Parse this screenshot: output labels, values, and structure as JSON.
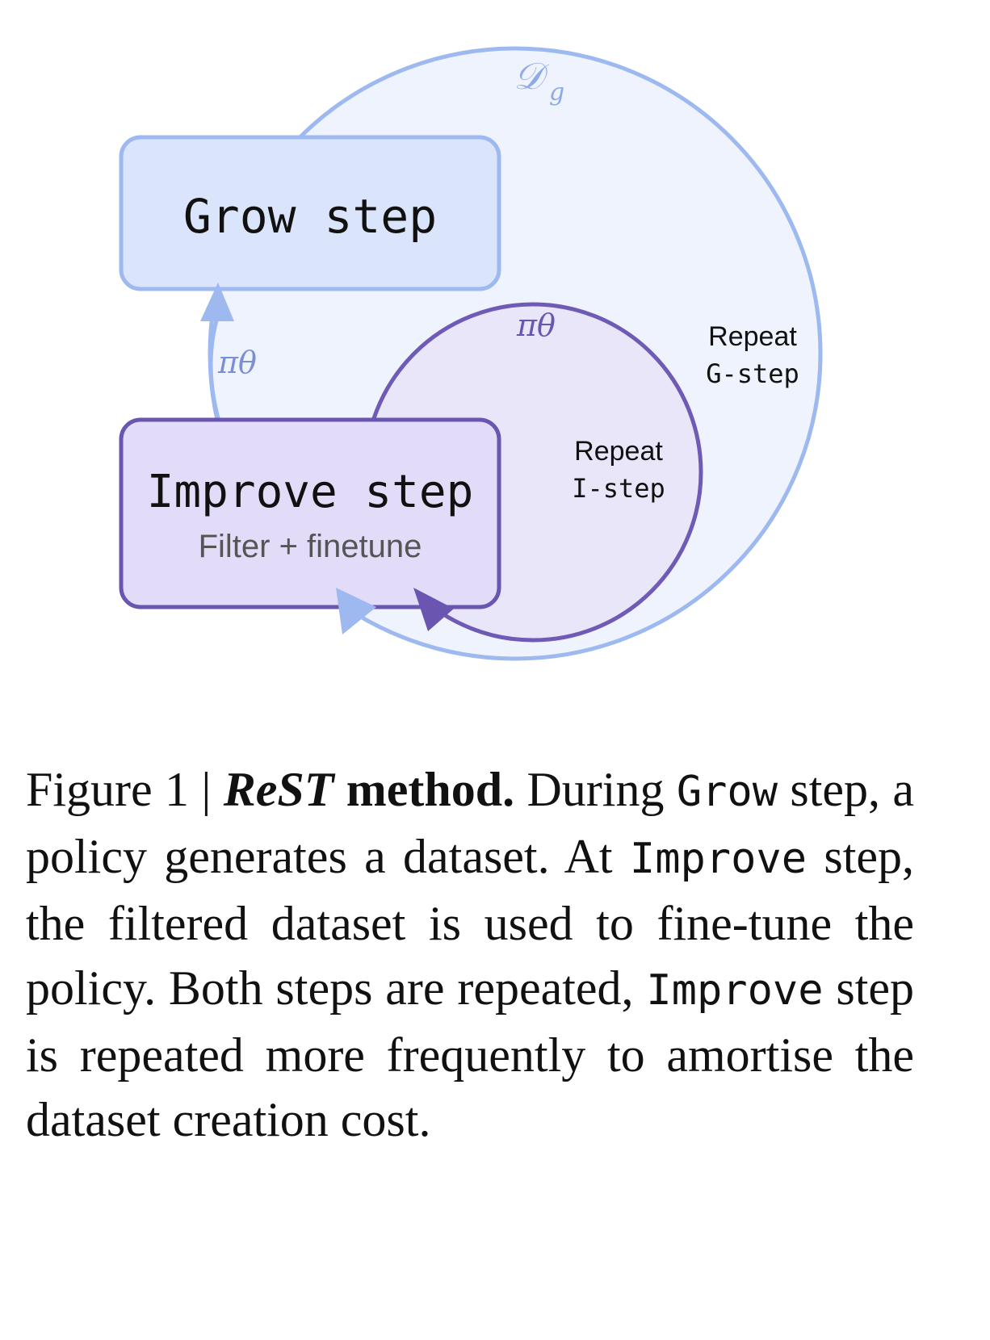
{
  "figure": {
    "dataset_symbol": "𝒟",
    "dataset_subscript": "g",
    "grow_box": {
      "title": "Grow step"
    },
    "improve_box": {
      "title": "Improve step",
      "subtitle": "Filter + finetune"
    },
    "policy_symbol_left": "πθ",
    "policy_symbol_inner": "πθ",
    "repeat_g": {
      "line1": "Repeat",
      "line2": "G-step"
    },
    "repeat_i": {
      "line1": "Repeat",
      "line2": "I-step"
    },
    "colors": {
      "outer_fill": "#eef3fd",
      "outer_stroke": "#9db9f0",
      "grow_fill": "#dae4fa",
      "grow_stroke": "#9db9f0",
      "inner_fill": "#e8e6f8",
      "inner_stroke": "#6f5bb5",
      "improve_fill": "#e2dcf8",
      "improve_stroke": "#6a56b0",
      "blue_arrow": "#9db9f0",
      "purple_arrow": "#6a56b0"
    }
  },
  "caption": {
    "label": "Figure 1 |",
    "method_name": "ReST",
    "method_word": "method.",
    "t1": "During",
    "grow_code": "Grow",
    "t2": "step, a policy generates a dataset. At",
    "improve_code": "Improve",
    "t3": "step, the filtered dataset is used to fine-tune the policy. Both steps are repeated,",
    "improve_code2": "Improve",
    "t4": "step is repeated more frequently to amortise the dataset creation cost."
  }
}
